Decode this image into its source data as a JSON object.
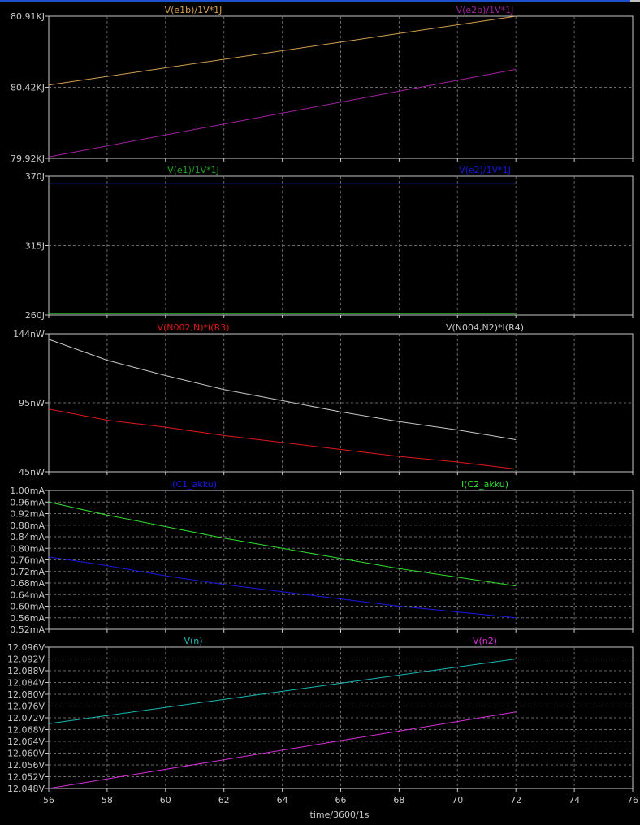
{
  "window": {
    "topbar_color": "#1d50c8"
  },
  "x_axis": {
    "label": "time/3600/1s",
    "ticks": [
      "56",
      "58",
      "60",
      "62",
      "64",
      "66",
      "68",
      "70",
      "72",
      "74",
      "76"
    ],
    "range": [
      56,
      76
    ]
  },
  "chart_data": [
    {
      "type": "line",
      "grid": true,
      "ylim": [
        79.92,
        80.91
      ],
      "yticks": [
        "80.91KJ",
        "80.42KJ",
        "79.92KJ"
      ],
      "series": [
        {
          "name": "V(e1b)/1V*1J",
          "color": "#d4a050",
          "x": [
            56,
            72
          ],
          "values": [
            80.43,
            80.91
          ]
        },
        {
          "name": "V(e2b)/1V*1J",
          "color": "#a020a0",
          "x": [
            56,
            72
          ],
          "values": [
            79.93,
            80.54
          ]
        }
      ]
    },
    {
      "type": "line",
      "grid": true,
      "ylim": [
        260,
        370
      ],
      "yticks": [
        "370J",
        "315J",
        "260J"
      ],
      "series": [
        {
          "name": "V(e1)/1V*1J",
          "color": "#20a020",
          "x": [
            56,
            72
          ],
          "values": [
            261,
            261
          ]
        },
        {
          "name": "V(e2)/1V*1J",
          "color": "#1818d8",
          "x": [
            56,
            72
          ],
          "values": [
            364,
            364
          ]
        }
      ]
    },
    {
      "type": "line",
      "grid": true,
      "ylim": [
        45,
        144
      ],
      "yticks": [
        "144nW",
        "95nW",
        "45nW"
      ],
      "series": [
        {
          "name": "V(N002,N)*I(R3)",
          "color": "#e01818",
          "x": [
            56,
            58,
            60,
            62,
            64,
            66,
            68,
            70,
            72
          ],
          "values": [
            90,
            82,
            77,
            71,
            66,
            61,
            56,
            52,
            47
          ]
        },
        {
          "name": "V(N004,N2)*I(R4)",
          "color": "#c8c8c8",
          "x": [
            56,
            58,
            60,
            62,
            64,
            66,
            68,
            70,
            72
          ],
          "values": [
            140,
            125,
            114,
            104,
            96,
            88,
            81,
            75,
            68
          ]
        }
      ]
    },
    {
      "type": "line",
      "grid": true,
      "ylim": [
        0.52,
        1.0
      ],
      "yticks": [
        "1.00mA",
        "0.96mA",
        "0.92mA",
        "0.88mA",
        "0.84mA",
        "0.80mA",
        "0.76mA",
        "0.72mA",
        "0.68mA",
        "0.64mA",
        "0.60mA",
        "0.56mA",
        "0.52mA"
      ],
      "series": [
        {
          "name": "I(C1_akku)",
          "color": "#1818e8",
          "x": [
            56,
            58,
            60,
            62,
            64,
            66,
            68,
            70,
            72
          ],
          "values": [
            0.77,
            0.74,
            0.705,
            0.675,
            0.65,
            0.625,
            0.6,
            0.58,
            0.56
          ]
        },
        {
          "name": "I(C2_akku)",
          "color": "#30e030",
          "x": [
            56,
            58,
            60,
            62,
            64,
            66,
            68,
            70,
            72
          ],
          "values": [
            0.96,
            0.915,
            0.875,
            0.835,
            0.8,
            0.765,
            0.73,
            0.7,
            0.67
          ]
        }
      ]
    },
    {
      "type": "line",
      "grid": true,
      "ylim": [
        12.048,
        12.096
      ],
      "yticks": [
        "12.096V",
        "12.092V",
        "12.088V",
        "12.084V",
        "12.080V",
        "12.076V",
        "12.072V",
        "12.068V",
        "12.064V",
        "12.060V",
        "12.056V",
        "12.052V",
        "12.048V"
      ],
      "series": [
        {
          "name": "V(n)",
          "color": "#18b8b8",
          "x": [
            56,
            72
          ],
          "values": [
            12.07,
            12.092
          ]
        },
        {
          "name": "V(n2)",
          "color": "#d830d8",
          "x": [
            56,
            72
          ],
          "values": [
            12.048,
            12.074
          ]
        }
      ]
    }
  ]
}
